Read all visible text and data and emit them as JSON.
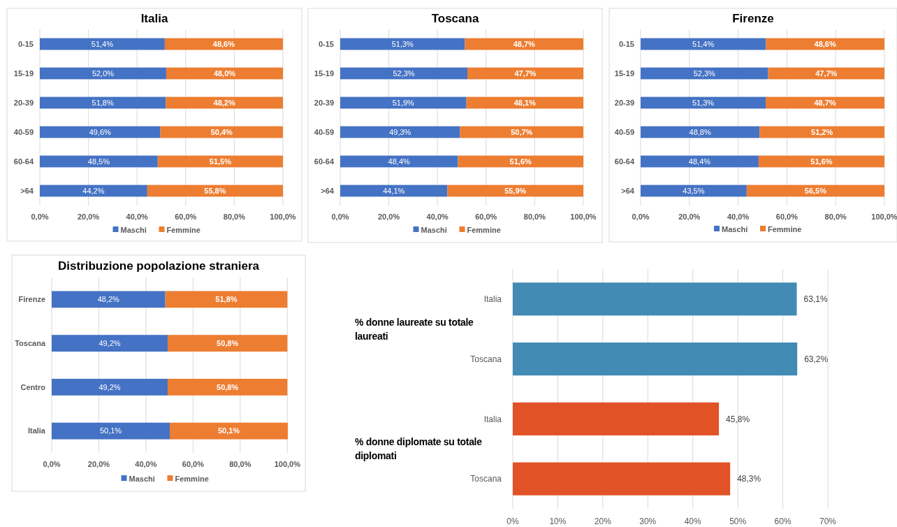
{
  "chart_data": [
    {
      "type": "bar",
      "title": "Italia",
      "orientation": "horizontal",
      "stacked": true,
      "categories": [
        "0-15",
        "15-19",
        "20-39",
        "40-59",
        "60-64",
        ">64"
      ],
      "series": [
        {
          "name": "Maschi",
          "color": "#4472c4",
          "values": [
            51.4,
            52.0,
            51.8,
            49.6,
            48.5,
            44.2
          ],
          "value_labels": [
            "51,4%",
            "52,0%",
            "51,8%",
            "49,6%",
            "48,5%",
            "44,2%"
          ]
        },
        {
          "name": "Femmine",
          "color": "#ed7d31",
          "values": [
            48.6,
            48.0,
            48.2,
            50.4,
            51.5,
            55.8
          ],
          "value_labels": [
            "48,6%",
            "48,0%",
            "48,2%",
            "50,4%",
            "51,5%",
            "55,8%"
          ]
        }
      ],
      "xlim": [
        0,
        100
      ],
      "xticks": [
        {
          "value": 0,
          "label": "0,0%"
        },
        {
          "value": 20,
          "label": "20,0%"
        },
        {
          "value": 40,
          "label": "40,0%"
        },
        {
          "value": 60,
          "label": "60,0%"
        },
        {
          "value": 80,
          "label": "80,0%"
        },
        {
          "value": 100,
          "label": "100,0%"
        }
      ],
      "grid": "x",
      "legend": "bottom"
    },
    {
      "type": "bar",
      "title": "Toscana",
      "orientation": "horizontal",
      "stacked": true,
      "categories": [
        "0-15",
        "15-19",
        "20-39",
        "40-59",
        "60-64",
        ">64"
      ],
      "series": [
        {
          "name": "Maschi",
          "color": "#4472c4",
          "values": [
            51.3,
            52.3,
            51.9,
            49.3,
            48.4,
            44.1
          ],
          "value_labels": [
            "51,3%",
            "52,3%",
            "51,9%",
            "49,3%",
            "48,4%",
            "44,1%"
          ]
        },
        {
          "name": "Femmine",
          "color": "#ed7d31",
          "values": [
            48.7,
            47.7,
            48.1,
            50.7,
            51.6,
            55.9
          ],
          "value_labels": [
            "48,7%",
            "47,7%",
            "48,1%",
            "50,7%",
            "51,6%",
            "55,9%"
          ]
        }
      ],
      "xlim": [
        0,
        100
      ],
      "xticks": [
        {
          "value": 0,
          "label": "0,0%"
        },
        {
          "value": 20,
          "label": "20,0%"
        },
        {
          "value": 40,
          "label": "40,0%"
        },
        {
          "value": 60,
          "label": "60,0%"
        },
        {
          "value": 80,
          "label": "80,0%"
        },
        {
          "value": 100,
          "label": "100,0%"
        }
      ],
      "grid": "x",
      "legend": "bottom"
    },
    {
      "type": "bar",
      "title": "Firenze",
      "orientation": "horizontal",
      "stacked": true,
      "categories": [
        "0-15",
        "15-19",
        "20-39",
        "40-59",
        "60-64",
        ">64"
      ],
      "series": [
        {
          "name": "Maschi",
          "color": "#4472c4",
          "values": [
            51.4,
            52.3,
            51.3,
            48.8,
            48.4,
            43.5
          ],
          "value_labels": [
            "51,4%",
            "52,3%",
            "51,3%",
            "48,8%",
            "48,4%",
            "43,5%"
          ]
        },
        {
          "name": "Femmine",
          "color": "#ed7d31",
          "values": [
            48.6,
            47.7,
            48.7,
            51.2,
            51.6,
            56.5
          ],
          "value_labels": [
            "48,6%",
            "47,7%",
            "48,7%",
            "51,2%",
            "51,6%",
            "56,5%"
          ]
        }
      ],
      "xlim": [
        0,
        100
      ],
      "xticks": [
        {
          "value": 0,
          "label": "0,0%"
        },
        {
          "value": 20,
          "label": "20,0%"
        },
        {
          "value": 40,
          "label": "40,0%"
        },
        {
          "value": 60,
          "label": "60,0%"
        },
        {
          "value": 80,
          "label": "80,0%"
        },
        {
          "value": 100,
          "label": "100,0%"
        }
      ],
      "grid": "x",
      "legend": "bottom"
    },
    {
      "type": "bar",
      "title": "Distribuzione popolazione straniera",
      "orientation": "horizontal",
      "stacked": true,
      "categories": [
        "Firenze",
        "Toscana",
        "Centro",
        "Italia"
      ],
      "series": [
        {
          "name": "Maschi",
          "color": "#4472c4",
          "values": [
            48.2,
            49.2,
            49.2,
            50.1
          ],
          "value_labels": [
            "48,2%",
            "49,2%",
            "49,2%",
            "50,1%"
          ]
        },
        {
          "name": "Femmine",
          "color": "#ed7d31",
          "values": [
            51.8,
            50.8,
            50.8,
            50.1
          ],
          "value_labels": [
            "51,8%",
            "50,8%",
            "50,8%",
            "50,1%"
          ]
        }
      ],
      "xlim": [
        0,
        100.2
      ],
      "xticks": [
        {
          "value": 0,
          "label": "0,0%"
        },
        {
          "value": 20,
          "label": "20,0%"
        },
        {
          "value": 40,
          "label": "40,0%"
        },
        {
          "value": 60,
          "label": "60,0%"
        },
        {
          "value": 80,
          "label": "80,0%"
        },
        {
          "value": 100,
          "label": "100,0%"
        }
      ],
      "grid": "x",
      "legend": "bottom"
    },
    {
      "type": "bar",
      "orientation": "horizontal",
      "categories": [
        "Italia",
        "Toscana",
        "Italia",
        "Toscana"
      ],
      "values": [
        63.1,
        63.2,
        45.8,
        48.3
      ],
      "colors": [
        "#428bb5",
        "#428bb5",
        "#e15327",
        "#e15327"
      ],
      "value_labels": [
        "63,1%",
        "63,2%",
        "45,8%",
        "48,3%"
      ],
      "annotations": [
        "% donne laureate su totale laureati",
        "% donne diplomate su totale diplomati"
      ],
      "xlim": [
        0,
        70
      ],
      "xticks": [
        {
          "value": 0,
          "label": "0%"
        },
        {
          "value": 10,
          "label": "10%"
        },
        {
          "value": 20,
          "label": "20%"
        },
        {
          "value": 30,
          "label": "30%"
        },
        {
          "value": 40,
          "label": "40%"
        },
        {
          "value": 50,
          "label": "50%"
        },
        {
          "value": 60,
          "label": "60%"
        },
        {
          "value": 70,
          "label": "70%"
        }
      ],
      "grid": "x"
    }
  ]
}
